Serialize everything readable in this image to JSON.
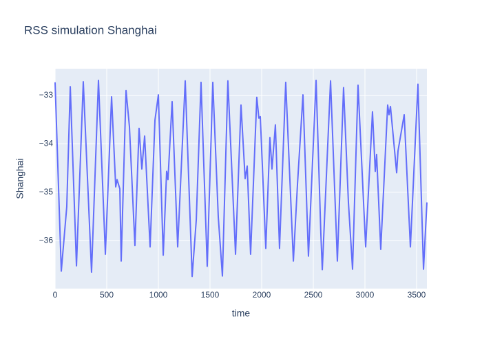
{
  "chart_data": {
    "type": "line",
    "title": "RSS simulation Shanghai",
    "x_label": "time",
    "y_label": "Shanghai",
    "xlim": [
      0,
      3600
    ],
    "ylim": [
      -36.99,
      -32.45
    ],
    "xticks": [
      0,
      500,
      1000,
      1500,
      2000,
      2500,
      3000,
      3500
    ],
    "yticks": [
      {
        "value": -33,
        "label": "−33"
      },
      {
        "value": -34,
        "label": "−34"
      },
      {
        "value": -35,
        "label": "−35"
      },
      {
        "value": -36,
        "label": "−36"
      }
    ],
    "grid": true,
    "series": [
      {
        "color": "#636efa",
        "x": [
          0,
          60,
          113,
          147,
          207,
          273,
          353,
          420,
          487,
          547,
          587,
          600,
          627,
          640,
          687,
          720,
          773,
          813,
          840,
          867,
          920,
          967,
          1000,
          1047,
          1080,
          1093,
          1133,
          1187,
          1260,
          1327,
          1367,
          1413,
          1473,
          1527,
          1580,
          1620,
          1673,
          1747,
          1800,
          1840,
          1860,
          1893,
          1953,
          1973,
          1987,
          2040,
          2080,
          2100,
          2133,
          2173,
          2233,
          2307,
          2347,
          2400,
          2453,
          2527,
          2573,
          2587,
          2667,
          2733,
          2793,
          2840,
          2880,
          2933,
          3007,
          3073,
          3100,
          3113,
          3153,
          3220,
          3233,
          3247,
          3307,
          3320,
          3380,
          3440,
          3513,
          3567,
          3600
        ],
        "values": [
          -32.73,
          -36.63,
          -35.3,
          -32.82,
          -36.52,
          -32.72,
          -36.65,
          -32.69,
          -36.28,
          -33.03,
          -34.89,
          -34.74,
          -34.93,
          -36.42,
          -32.9,
          -33.65,
          -36.1,
          -33.68,
          -34.52,
          -33.84,
          -36.13,
          -33.51,
          -32.99,
          -36.3,
          -34.57,
          -34.74,
          -33.13,
          -36.13,
          -32.7,
          -36.74,
          -35.57,
          -32.73,
          -36.53,
          -32.73,
          -35.51,
          -36.73,
          -32.7,
          -36.28,
          -33.2,
          -34.72,
          -34.46,
          -36.28,
          -33.04,
          -33.47,
          -33.44,
          -36.16,
          -33.87,
          -34.52,
          -33.61,
          -36.16,
          -32.73,
          -36.42,
          -34.83,
          -32.99,
          -36.32,
          -32.69,
          -35.85,
          -36.6,
          -32.7,
          -36.42,
          -32.84,
          -35.21,
          -36.59,
          -32.79,
          -36.13,
          -33.34,
          -34.57,
          -34.22,
          -36.18,
          -33.2,
          -33.4,
          -33.23,
          -34.6,
          -34.15,
          -33.4,
          -36.13,
          -32.77,
          -36.59,
          -35.21
        ]
      }
    ]
  }
}
